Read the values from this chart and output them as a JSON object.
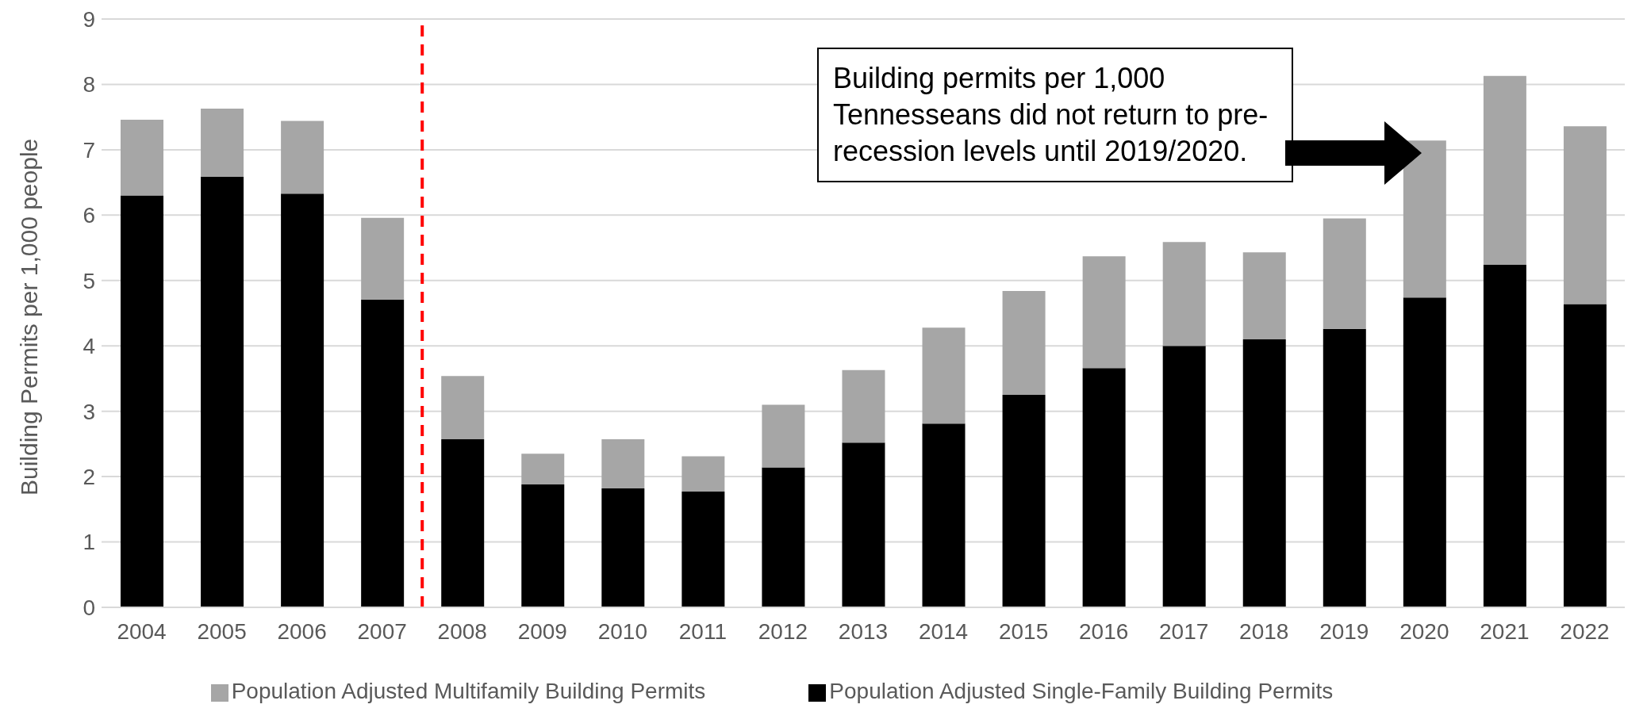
{
  "chart_data": {
    "type": "bar",
    "ylabel": "Building Permits per 1,000 people",
    "x": [
      2004,
      2005,
      2006,
      2007,
      2008,
      2009,
      2010,
      2011,
      2012,
      2013,
      2014,
      2015,
      2016,
      2017,
      2018,
      2019,
      2020,
      2021,
      2022
    ],
    "xlim": [
      2003.5,
      2022.5
    ],
    "xticks": [
      2004,
      2005,
      2006,
      2007,
      2008,
      2009,
      2010,
      2011,
      2012,
      2013,
      2014,
      2015,
      2016,
      2017,
      2018,
      2019,
      2020,
      2021,
      2022
    ],
    "ylim": [
      0,
      9
    ],
    "yticks": [
      0,
      1,
      2,
      3,
      4,
      5,
      6,
      7,
      8,
      9
    ],
    "stacked": true,
    "grid": "y",
    "legend": "bottom",
    "series": [
      {
        "name": "Population Adjusted Single-Family Building Permits",
        "color": "#000000",
        "values": [
          6.3,
          6.59,
          6.33,
          4.71,
          2.57,
          1.88,
          1.82,
          1.77,
          2.14,
          2.52,
          2.81,
          3.25,
          3.66,
          4.0,
          4.1,
          4.26,
          4.74,
          5.24,
          4.64
        ]
      },
      {
        "name": "Population Adjusted Multifamily Building Permits",
        "color": "#a6a6a6",
        "values": [
          1.16,
          1.04,
          1.11,
          1.25,
          0.97,
          0.47,
          0.75,
          0.54,
          0.96,
          1.11,
          1.47,
          1.59,
          1.71,
          1.59,
          1.33,
          1.69,
          2.4,
          2.89,
          2.72
        ]
      }
    ],
    "ref_lines": [
      {
        "axis": "x",
        "value": 2007.5,
        "color": "#ff0000",
        "line_style": "dashed"
      }
    ],
    "annotations": [
      "Building permits per 1,000 Tennesseans did not return to pre-recession levels until 2019/2020."
    ]
  }
}
